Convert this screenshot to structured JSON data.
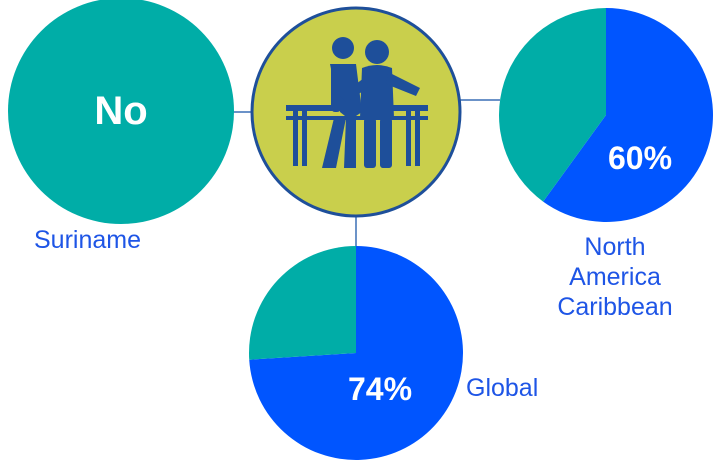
{
  "colors": {
    "teal": "#00ada7",
    "blue": "#0055ff",
    "center_fill": "#c9cf4c",
    "center_border": "#1e4f9a",
    "icon": "#1e4f9a",
    "label": "#1e55e6",
    "connector": "#3a6fb6"
  },
  "center_icon": "physical-therapy-icon",
  "chart_data": [
    {
      "type": "pie",
      "name": "Suriname",
      "label": "Suriname",
      "display_text": "No",
      "values": [
        100
      ],
      "series_colors": [
        "#00ada7"
      ]
    },
    {
      "type": "pie",
      "name": "North America Caribbean",
      "label_lines": [
        "North",
        "America",
        "Caribbean"
      ],
      "display_text": "60%",
      "values": [
        60,
        40
      ],
      "series_colors": [
        "#0055ff",
        "#00ada7"
      ]
    },
    {
      "type": "pie",
      "name": "Global",
      "label": "Global",
      "display_text": "74%",
      "values": [
        74,
        26
      ],
      "series_colors": [
        "#0055ff",
        "#00ada7"
      ]
    }
  ]
}
